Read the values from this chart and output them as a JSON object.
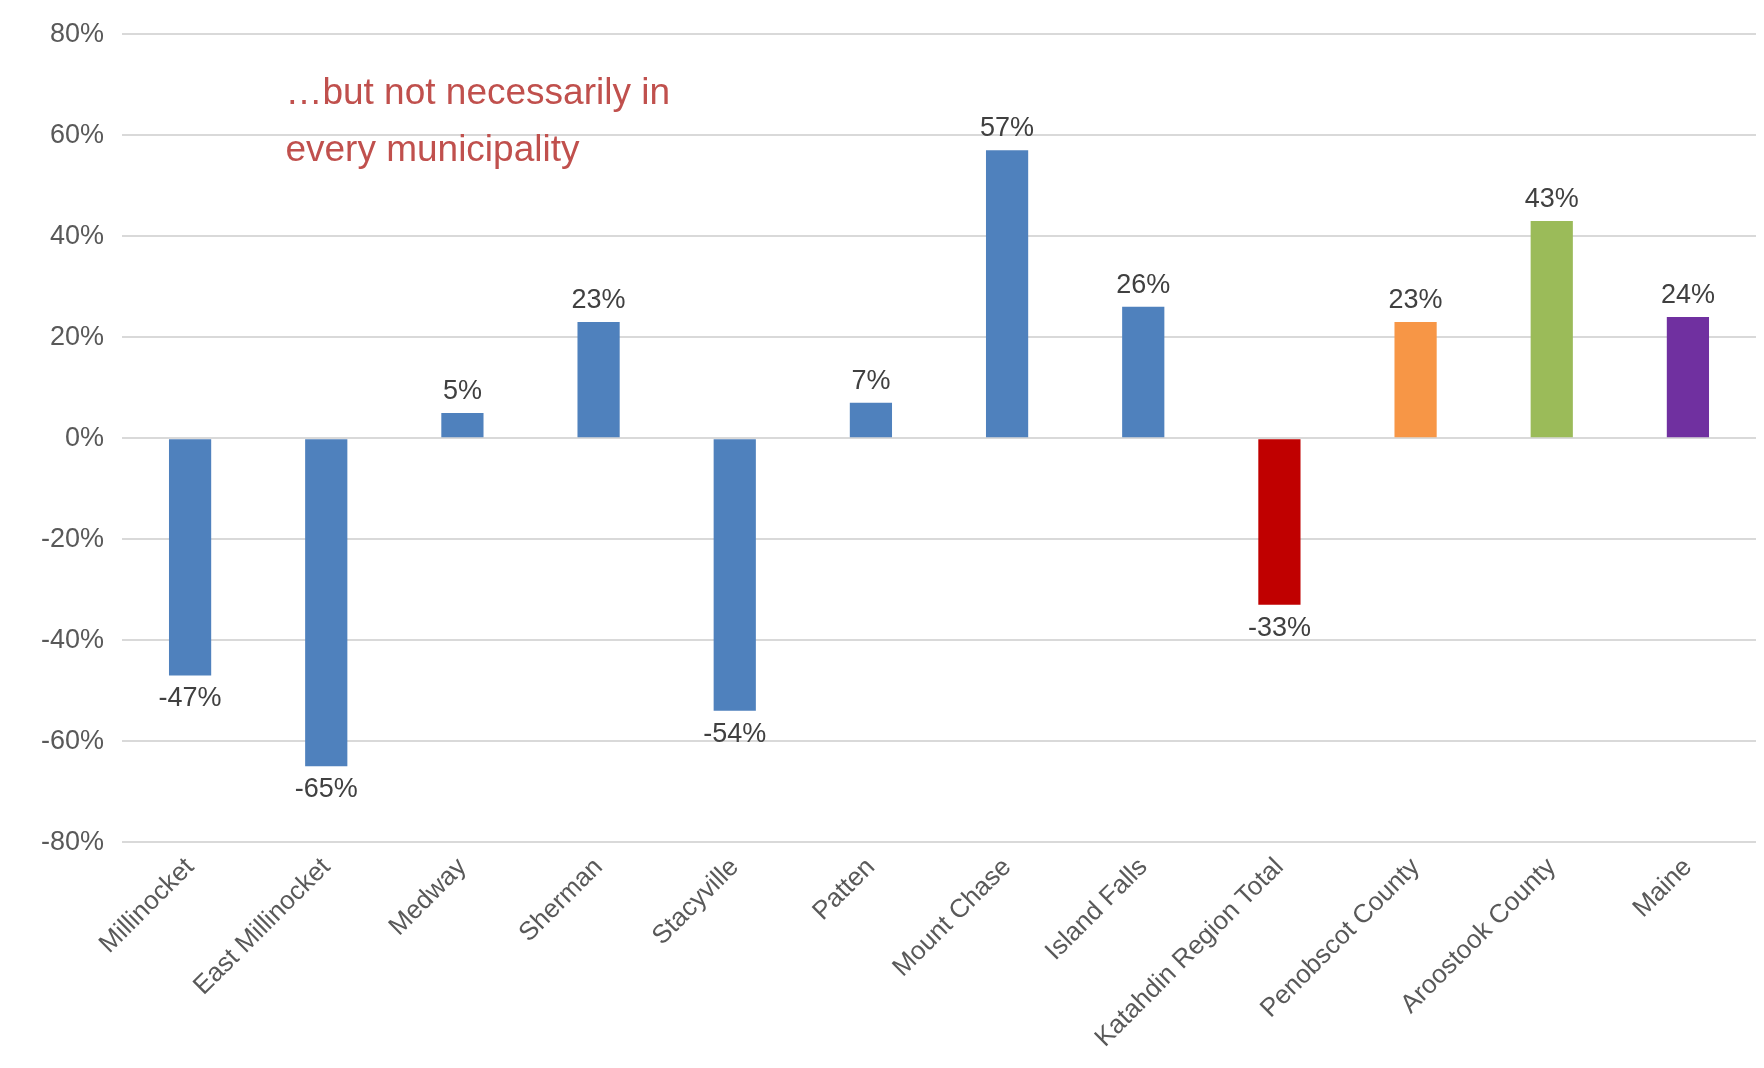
{
  "chart_data": {
    "type": "bar",
    "categories": [
      "Millinocket",
      "East Millinocket",
      "Medway",
      "Sherman",
      "Stacyville",
      "Patten",
      "Mount Chase",
      "Island Falls",
      "Katahdin Region Total",
      "Penobscot County",
      "Aroostook County",
      "Maine"
    ],
    "values": [
      -47,
      -65,
      5,
      23,
      -54,
      7,
      57,
      26,
      -33,
      23,
      43,
      24
    ],
    "colors": [
      "#4f81bd",
      "#4f81bd",
      "#4f81bd",
      "#4f81bd",
      "#4f81bd",
      "#4f81bd",
      "#4f81bd",
      "#4f81bd",
      "#c00000",
      "#f79646",
      "#9bbb59",
      "#7030a0"
    ],
    "value_labels": [
      "-47%",
      "-65%",
      "5%",
      "23%",
      "-54%",
      "7%",
      "57%",
      "26%",
      "-33%",
      "23%",
      "43%",
      "24%"
    ],
    "ylim": [
      -80,
      80
    ],
    "yticks": [
      {
        "value": -80,
        "label": "-80%"
      },
      {
        "value": -60,
        "label": "-60%"
      },
      {
        "value": -40,
        "label": "-40%"
      },
      {
        "value": -20,
        "label": "-20%"
      },
      {
        "value": 0,
        "label": "0%"
      },
      {
        "value": 20,
        "label": "20%"
      },
      {
        "value": 40,
        "label": "40%"
      },
      {
        "value": 60,
        "label": "60%"
      },
      {
        "value": 80,
        "label": "80%"
      }
    ],
    "grid": "y",
    "annotations": [
      "…but not necessarily in every municipality"
    ]
  }
}
